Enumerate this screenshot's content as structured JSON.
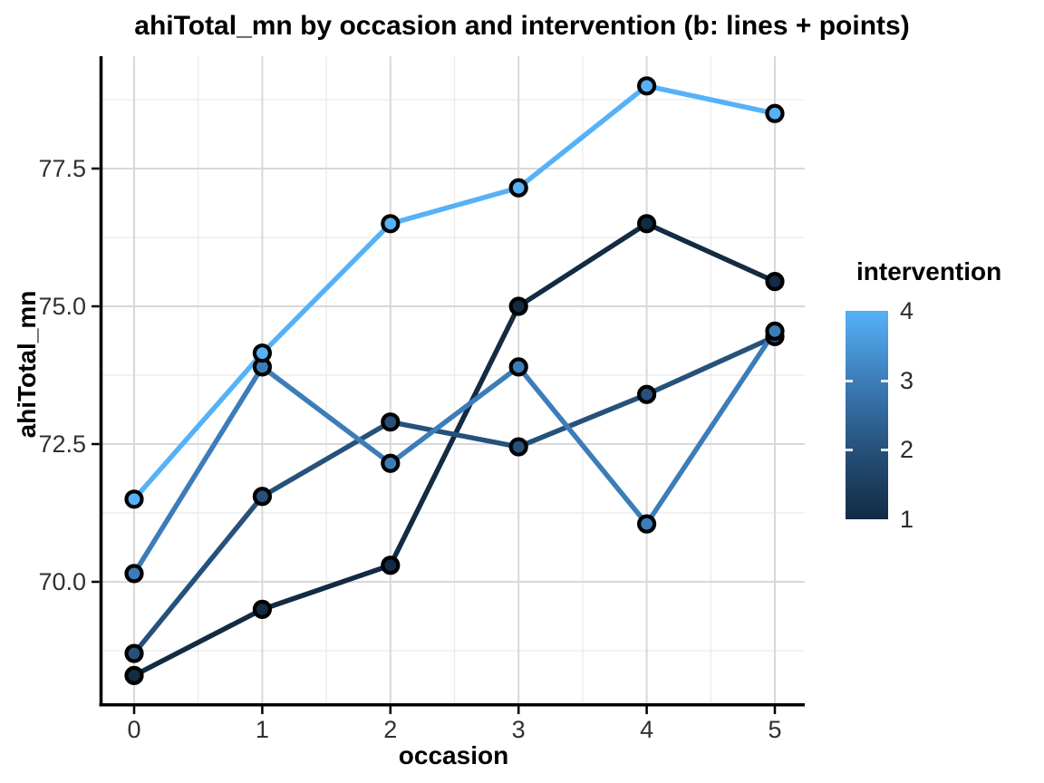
{
  "chart_data": {
    "type": "line",
    "title": "ahiTotal_mn by occasion and intervention (b: lines + points)",
    "xlabel": "occasion",
    "ylabel": "ahiTotal_mn",
    "x": [
      0,
      1,
      2,
      3,
      4,
      5
    ],
    "x_tick_labels": [
      "0",
      "1",
      "2",
      "3",
      "4",
      "5"
    ],
    "y_ticks": [
      70.0,
      72.5,
      75.0,
      77.5
    ],
    "y_tick_labels": [
      "70.0",
      "72.5",
      "75.0",
      "77.5"
    ],
    "xlim": [
      -0.25,
      5.25
    ],
    "ylim": [
      67.8,
      79.55
    ],
    "grid": "major+minor",
    "legend_position": "right",
    "marker": "circle-black-outline",
    "series": [
      {
        "name": "intervention 1",
        "intervention": 1,
        "color": "#132B43",
        "values": [
          68.3,
          69.5,
          70.3,
          75.0,
          76.5,
          75.45
        ]
      },
      {
        "name": "intervention 2",
        "intervention": 2,
        "color": "#26517A",
        "values": [
          68.7,
          71.55,
          72.9,
          72.45,
          73.4,
          74.45
        ]
      },
      {
        "name": "intervention 3",
        "intervention": 3,
        "color": "#3C7DB9",
        "values": [
          70.15,
          73.9,
          72.15,
          73.9,
          71.05,
          74.55
        ]
      },
      {
        "name": "intervention 4",
        "intervention": 4,
        "color": "#56B1F7",
        "values": [
          71.5,
          74.15,
          76.5,
          77.15,
          79.0,
          78.5
        ]
      }
    ]
  },
  "legend": {
    "title": "intervention",
    "labels": [
      "4",
      "3",
      "2",
      "1"
    ],
    "values": [
      4,
      3,
      2,
      1
    ],
    "gradient_top": "#56B1F7",
    "gradient_bottom": "#132B43"
  },
  "style_colors": {
    "grid_major": "#D8D8D8",
    "grid_minor": "#EBEBEB",
    "axis_line": "#000000",
    "tick_label": "#303030",
    "point_outline": "#000000"
  }
}
